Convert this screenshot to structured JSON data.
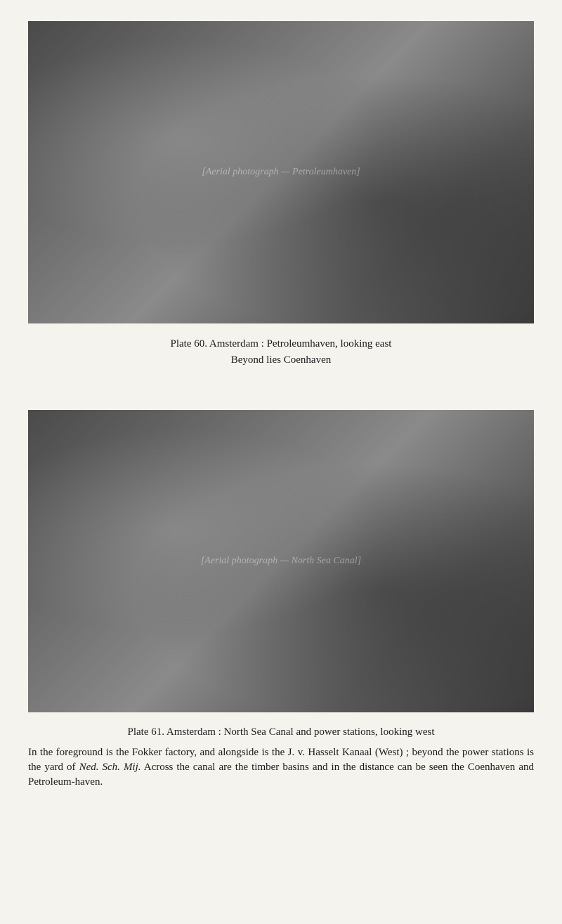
{
  "page": {
    "background_color": "#f5f3ee",
    "text_color": "#1a1a1a"
  },
  "plate60": {
    "photo_alt": "[Aerial photograph — Petroleumhaven]",
    "caption_line1": "Plate 60.   Amsterdam : Petroleumhaven, looking east",
    "caption_line2": "Beyond lies Coenhaven"
  },
  "plate61": {
    "photo_alt": "[Aerial photograph — North Sea Canal]",
    "caption_title": "Plate 61.   Amsterdam : North Sea Canal and power stations, looking west",
    "caption_body_1": "In the foreground is the Fokker factory, and alongside is the J. v. Hasselt Kanaal (West) ; beyond the power stations is the yard of ",
    "caption_body_italic": "Ned. Sch. Mij.",
    "caption_body_2": "   Across the canal are the timber basins and in the distance can be seen the Coenhaven and Petroleum-haven."
  }
}
